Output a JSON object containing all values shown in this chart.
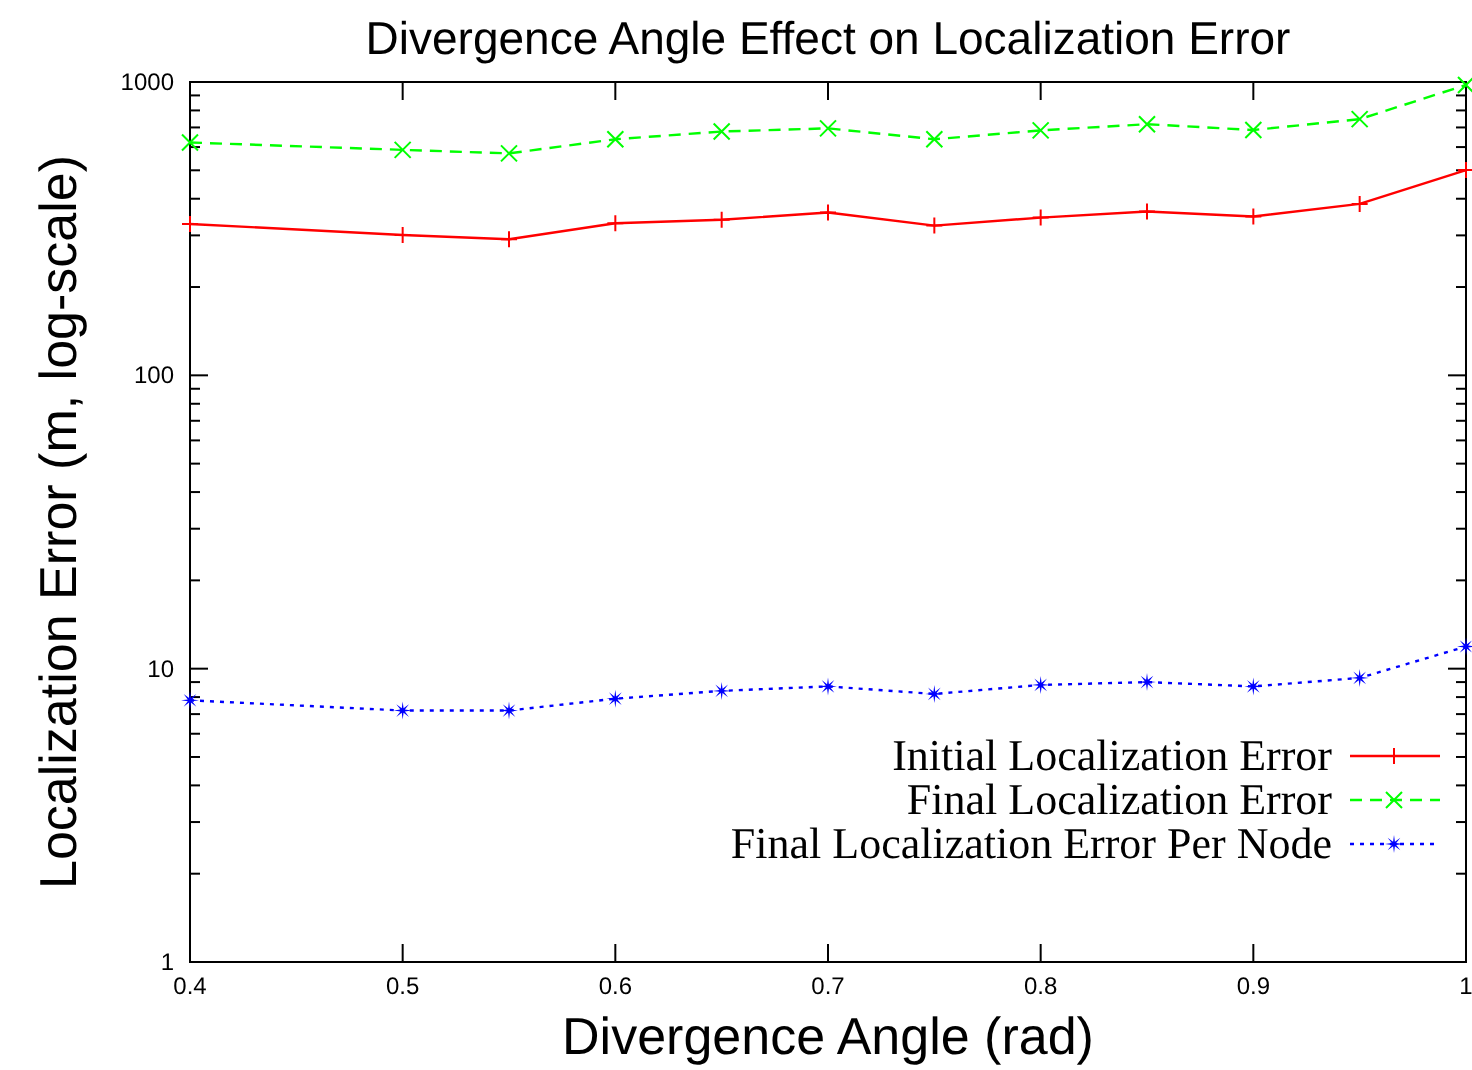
{
  "chart_data": {
    "type": "line",
    "title": "Divergence Angle Effect on Localization Error",
    "xlabel": "Divergence Angle (rad)",
    "ylabel": "Localization Error (m, log-scale)",
    "log": "y",
    "legend": "bottom right",
    "grid": false,
    "x": [
      0.4,
      0.5,
      0.55,
      0.6,
      0.65,
      0.7,
      0.75,
      0.8,
      0.85,
      0.9,
      0.95,
      1.0
    ],
    "xlim": [
      0.4,
      1
    ],
    "xticks": [
      0.4,
      0.5,
      0.6,
      0.7,
      0.8,
      0.9,
      {
        "value": 1,
        "label": "1"
      }
    ],
    "ylim": [
      1,
      1000
    ],
    "yticks": [
      1,
      {
        "value": 2,
        "label": null
      },
      {
        "value": 3,
        "label": null
      },
      {
        "value": 4,
        "label": null
      },
      {
        "value": 5,
        "label": null
      },
      {
        "value": 6,
        "label": null
      },
      {
        "value": 7,
        "label": null
      },
      {
        "value": 8,
        "label": null
      },
      {
        "value": 9,
        "label": null
      },
      10,
      {
        "value": 20,
        "label": null
      },
      {
        "value": 30,
        "label": null
      },
      {
        "value": 40,
        "label": null
      },
      {
        "value": 50,
        "label": null
      },
      {
        "value": 60,
        "label": null
      },
      {
        "value": 70,
        "label": null
      },
      {
        "value": 80,
        "label": null
      },
      {
        "value": 90,
        "label": null
      },
      100,
      {
        "value": 200,
        "label": null
      },
      {
        "value": 300,
        "label": null
      },
      {
        "value": 400,
        "label": null
      },
      {
        "value": 500,
        "label": null
      },
      {
        "value": 600,
        "label": null
      },
      {
        "value": 700,
        "label": null
      },
      {
        "value": 800,
        "label": null
      },
      {
        "value": 900,
        "label": null
      },
      1000
    ],
    "series": [
      {
        "name": "Initial Localization Error",
        "color": "#ff0000",
        "marker": "plus",
        "line_style": "solid",
        "values": [
          328,
          301,
          291,
          330,
          339,
          359,
          324,
          345,
          362,
          348,
          384,
          501
        ]
      },
      {
        "name": "Final Localization Error",
        "color": "#00ff00",
        "marker": "cross",
        "line_style": "dashed",
        "values": [
          622,
          587,
          571,
          638,
          678,
          695,
          638,
          684,
          718,
          686,
          747,
          977
        ]
      },
      {
        "name": "Final Localization Error Per Node",
        "color": "#0000ff",
        "marker": "star",
        "line_style": "dotted",
        "values": [
          7.8,
          7.2,
          7.2,
          7.9,
          8.4,
          8.7,
          8.2,
          8.8,
          9.0,
          8.7,
          9.3,
          11.9
        ]
      }
    ]
  }
}
